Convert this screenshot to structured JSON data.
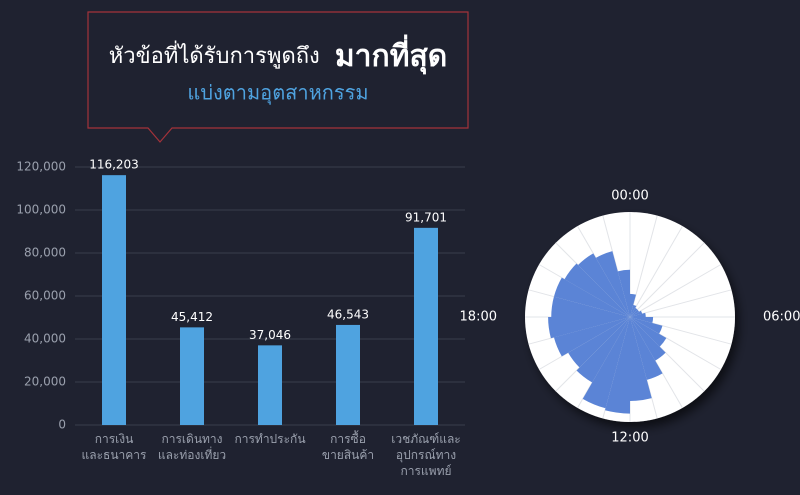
{
  "header": {
    "title": "หัวข้อที่ได้รับการพูดถึง",
    "title_emphasis": "มากที่สุด",
    "subtitle": "แบ่งตามอุตสาหกรรม"
  },
  "chart_data": [
    {
      "type": "bar",
      "categories": [
        "การเงิน\nและธนาคาร",
        "การเดินทาง\nและท่องเที่ยว",
        "การทำประกัน",
        "การซื้อ\nขายสินค้า",
        "เวชภัณฑ์และ\nอุปกรณ์ทาง\nการแพทย์"
      ],
      "values": [
        116203,
        45412,
        37046,
        46543,
        91701
      ],
      "value_labels": [
        "116,203",
        "45,412",
        "37,046",
        "46,543",
        "91,701"
      ],
      "color": "#4fa3e0",
      "ylim": [
        0,
        120000
      ],
      "yticks": [
        0,
        {
          "value": 20000,
          "label": "20,000"
        },
        {
          "value": 40000,
          "label": "40,000"
        },
        {
          "value": 60000,
          "label": "60,000"
        },
        {
          "value": 80000,
          "label": "80,000"
        },
        {
          "value": 100000,
          "label": "100,000"
        },
        {
          "value": 120000,
          "label": "120,000"
        }
      ],
      "grid": true
    },
    {
      "type": "polar",
      "categories": [
        "00:00",
        null,
        null,
        null,
        null,
        null,
        "06:00",
        null,
        null,
        null,
        null,
        null,
        "12:00",
        null,
        null,
        null,
        null,
        null,
        "18:00",
        null,
        null,
        null,
        null,
        null
      ],
      "values": [
        22,
        12,
        10,
        10,
        12,
        15,
        22,
        32,
        40,
        48,
        62,
        80,
        92,
        90,
        72,
        68,
        75,
        78,
        75,
        75,
        72,
        70,
        65,
        45
      ],
      "color": "#5b84d6",
      "rlim": [
        0,
        100
      ]
    }
  ]
}
